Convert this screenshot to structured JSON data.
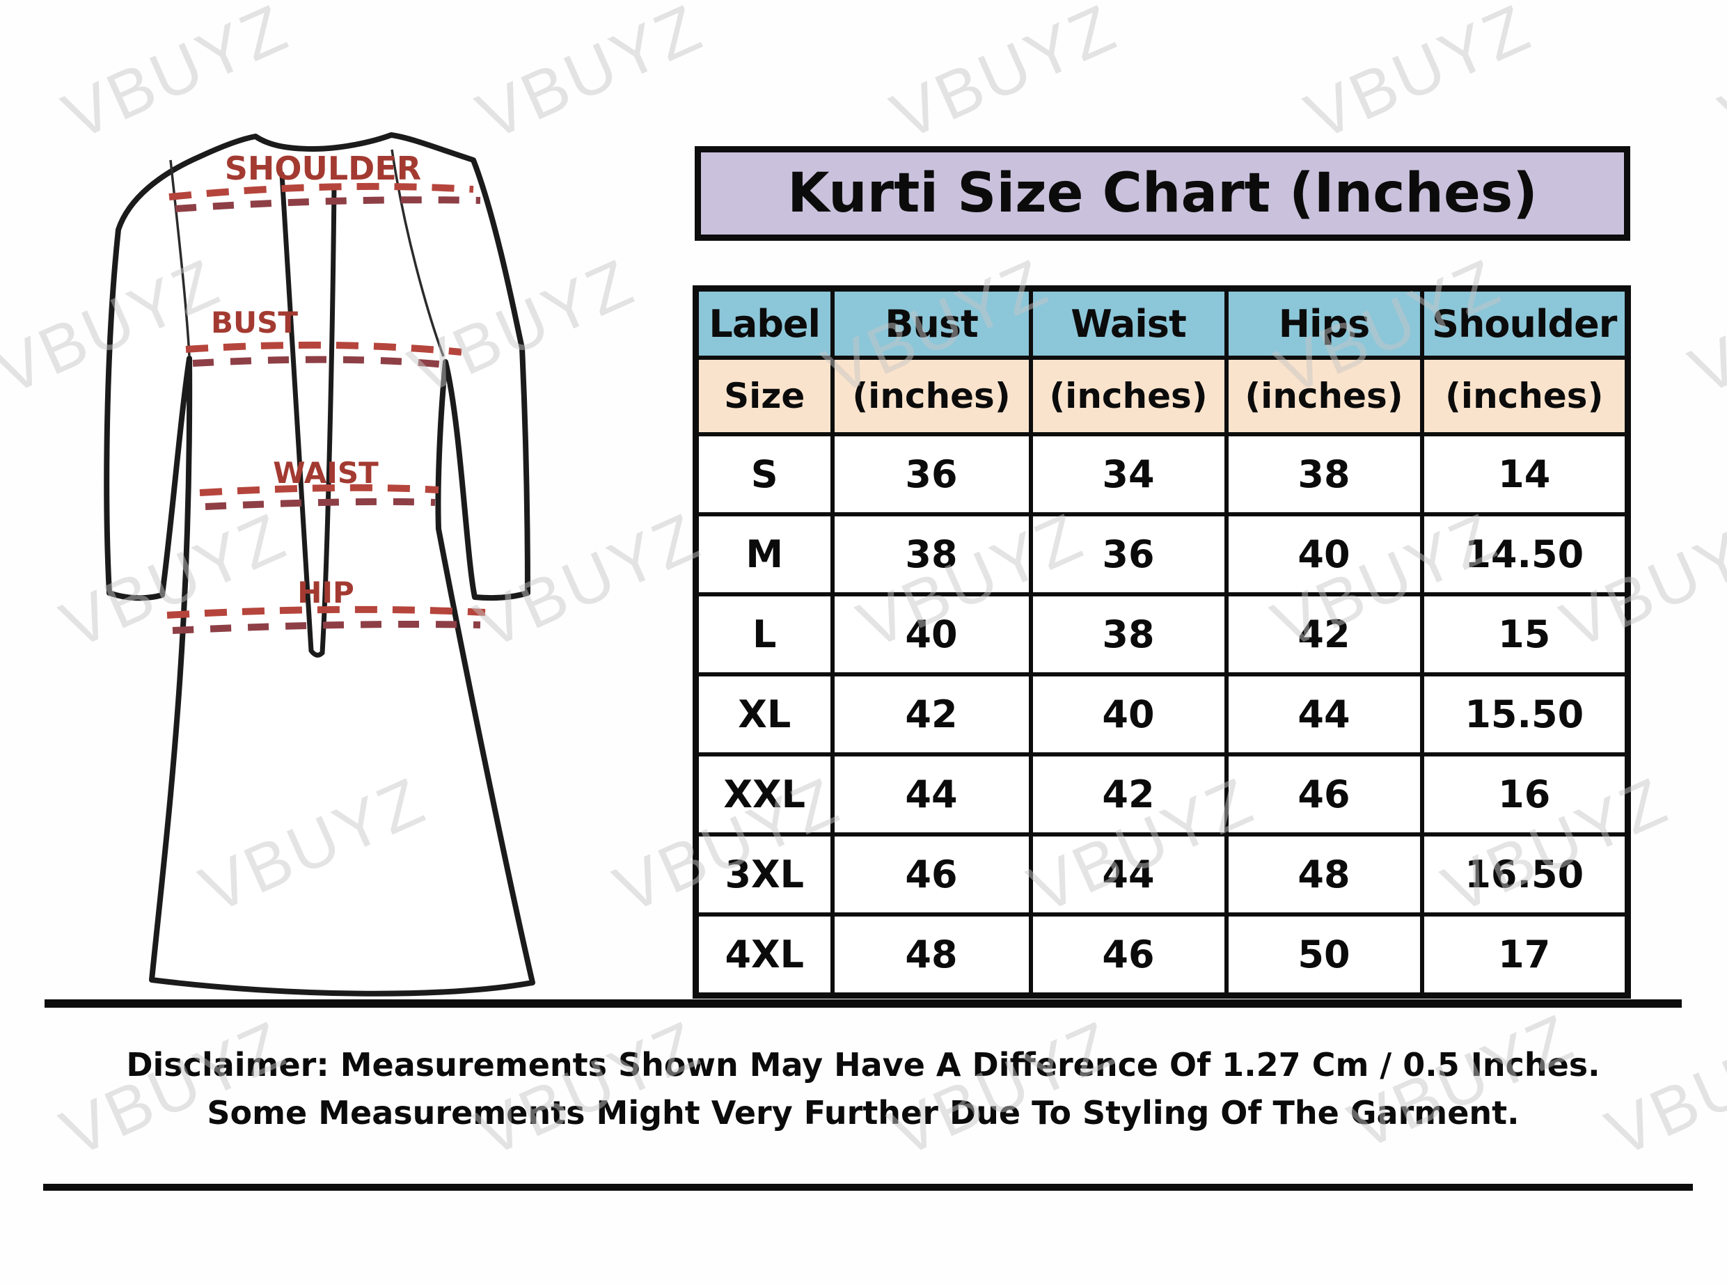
{
  "title": "Kurti Size Chart (Inches)",
  "watermark": {
    "text": "VBUYZ"
  },
  "diagram": {
    "labels": {
      "shoulder": "SHOULDER",
      "bust": "BUST",
      "waist": "WAIST",
      "hip": "HIP"
    }
  },
  "size_table": {
    "header": {
      "label": "Label",
      "bust": "Bust",
      "waist": "Waist",
      "hips": "Hips",
      "shoulder": "Shoulder"
    },
    "subheader": {
      "label": "Size",
      "bust": "(inches)",
      "waist": "(inches)",
      "hips": "(inches)",
      "shoulder": "(inches)"
    },
    "rows": [
      {
        "label": "S",
        "bust": "36",
        "waist": "34",
        "hips": "38",
        "shoulder": "14"
      },
      {
        "label": "M",
        "bust": "38",
        "waist": "36",
        "hips": "40",
        "shoulder": "14.50"
      },
      {
        "label": "L",
        "bust": "40",
        "waist": "38",
        "hips": "42",
        "shoulder": "15"
      },
      {
        "label": "XL",
        "bust": "42",
        "waist": "40",
        "hips": "44",
        "shoulder": "15.50"
      },
      {
        "label": "XXL",
        "bust": "44",
        "waist": "42",
        "hips": "46",
        "shoulder": "16"
      },
      {
        "label": "3XL",
        "bust": "46",
        "waist": "44",
        "hips": "48",
        "shoulder": "16.50"
      },
      {
        "label": "4XL",
        "bust": "48",
        "waist": "46",
        "hips": "50",
        "shoulder": "17"
      }
    ]
  },
  "disclaimer": {
    "line1": "Disclaimer: Measurements Shown May Have A Difference Of 1.27 Cm / 0.5 Inches.",
    "line2": "Some Measurements Might Very Further Due To Styling Of The Garment."
  },
  "colors": {
    "banner_bg": "#cac1dc",
    "header_bg": "#8cc6d9",
    "subheader_bg": "#fae3cc",
    "border": "#0d0d0d",
    "diagram_label_red": "#a33a31",
    "dash_red": "#b5453c",
    "dash_maroon": "#8e3f46",
    "watermark_gray": "#c7c7c7"
  },
  "chart_data": {
    "type": "table",
    "title": "Kurti Size Chart (Inches)",
    "columns": [
      "Label / Size",
      "Bust (inches)",
      "Waist (inches)",
      "Hips (inches)",
      "Shoulder (inches)"
    ],
    "rows": [
      [
        "S",
        36,
        34,
        38,
        14
      ],
      [
        "M",
        38,
        36,
        40,
        14.5
      ],
      [
        "L",
        40,
        38,
        42,
        15
      ],
      [
        "XL",
        42,
        40,
        44,
        15.5
      ],
      [
        "XXL",
        44,
        42,
        46,
        16
      ],
      [
        "3XL",
        46,
        44,
        48,
        16.5
      ],
      [
        "4XL",
        48,
        46,
        50,
        17
      ]
    ]
  }
}
